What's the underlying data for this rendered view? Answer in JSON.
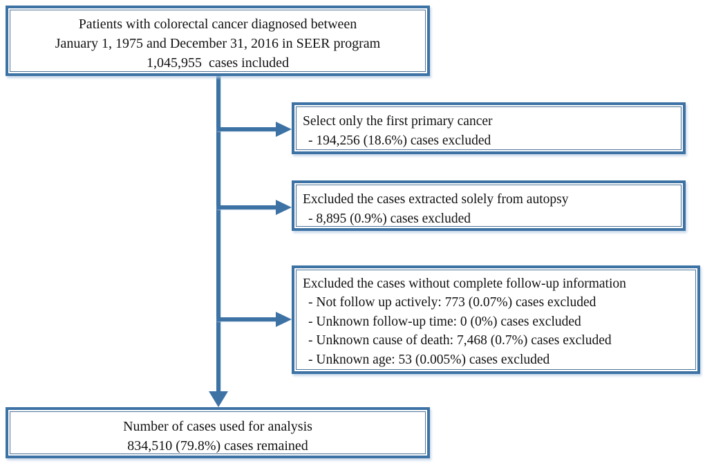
{
  "colors": {
    "accent": "#3d72a5",
    "inner_line": "#4d7396",
    "text": "#111111",
    "background": "#ffffff"
  },
  "flow": {
    "top_box": {
      "lines": [
        "Patients with colorectal cancer diagnosed between",
        "January 1, 1975 and December 31, 2016 in SEER program",
        "1,045,955  cases included"
      ]
    },
    "exclusion_boxes": [
      {
        "title": "Select only the first primary cancer",
        "items": [
          "- 194,256 (18.6%) cases excluded"
        ]
      },
      {
        "title": "Excluded the cases extracted solely from autopsy",
        "items": [
          "- 8,895 (0.9%) cases excluded"
        ]
      },
      {
        "title": "Excluded the cases without complete follow-up information",
        "items": [
          "- Not follow up actively: 773 (0.07%) cases excluded",
          "- Unknown follow-up time: 0 (0%) cases excluded",
          "- Unknown cause of death: 7,468 (0.7%) cases excluded",
          "- Unknown age: 53 (0.005%) cases excluded"
        ]
      }
    ],
    "final_box": {
      "lines": [
        "Number of cases used for analysis",
        "834,510 (79.8%) cases remained"
      ]
    }
  }
}
